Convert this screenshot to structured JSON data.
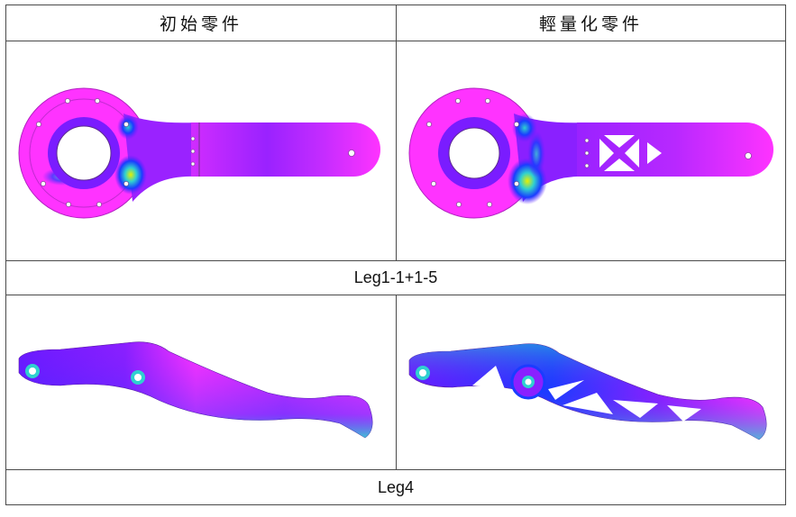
{
  "table": {
    "headers": {
      "original": "初始零件",
      "lightweight": "輕量化零件"
    },
    "rows": [
      {
        "label": "Leg1-1+1-5",
        "original_image": "leg1-original-stress-map",
        "lightweight_image": "leg1-lightweight-stress-map"
      },
      {
        "label": "Leg4",
        "original_image": "leg4-original-stress-map",
        "lightweight_image": "leg4-lightweight-stress-map"
      }
    ]
  },
  "colors": {
    "stress_low": "#ff33ff",
    "stress_mid": "#6a1aff",
    "stress_blue": "#1a3cff",
    "stress_high": "#2fd0d0",
    "stress_peak": "#e8f000",
    "border": "#4a4a4a"
  }
}
